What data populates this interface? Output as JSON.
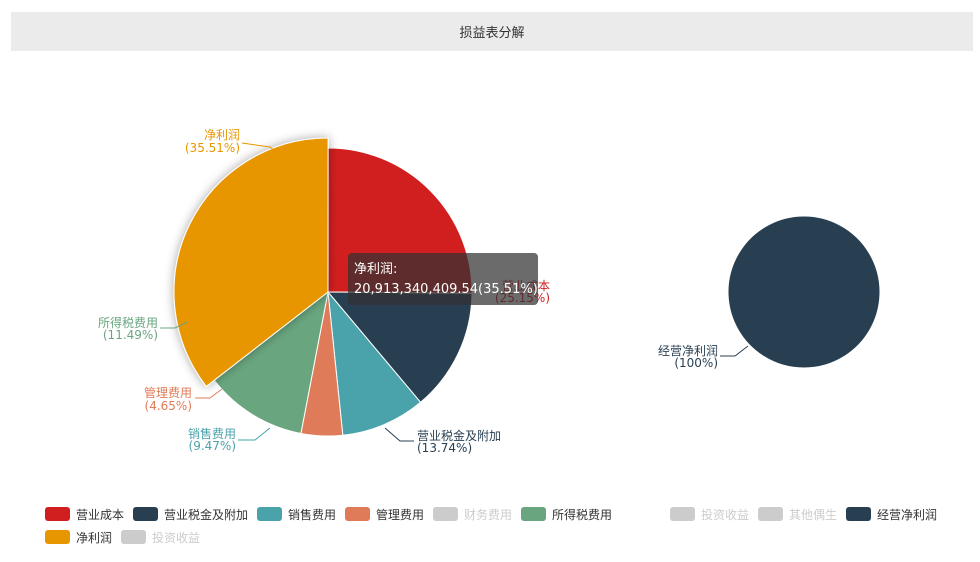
{
  "header": {
    "title": "损益表分解"
  },
  "chart_data": [
    {
      "type": "pie",
      "title": "",
      "slices": [
        {
          "name": "营业成本",
          "percent": 25.15,
          "color": "#d11f1f"
        },
        {
          "name": "营业税金及附加",
          "percent": 13.74,
          "color": "#283f52"
        },
        {
          "name": "销售费用",
          "percent": 9.47,
          "color": "#4aa3aa"
        },
        {
          "name": "管理费用",
          "percent": 4.65,
          "color": "#e07b59"
        },
        {
          "name": "所得税费用",
          "percent": 11.49,
          "color": "#69a67f"
        },
        {
          "name": "净利润",
          "percent": 35.51,
          "color": "#e89600",
          "highlighted": true
        }
      ]
    },
    {
      "type": "pie",
      "title": "",
      "slices": [
        {
          "name": "经营净利润",
          "percent": 100,
          "color": "#283f52"
        }
      ]
    }
  ],
  "slice_labels": {
    "cost": {
      "name": "营业成本",
      "pct": "(25.15%)"
    },
    "tax": {
      "name": "营业税金及附加",
      "pct": "(13.74%)"
    },
    "sales": {
      "name": "销售费用",
      "pct": "(9.47%)"
    },
    "admin": {
      "name": "管理费用",
      "pct": "(4.65%)"
    },
    "income_tax": {
      "name": "所得税费用",
      "pct": "(11.49%)"
    },
    "net_profit": {
      "name": "净利润",
      "pct": "(35.51%)"
    },
    "op_net_profit": {
      "name": "经营净利润",
      "pct": "(100%)"
    }
  },
  "tooltip": {
    "title": "净利润:",
    "value": "20,913,340,409.54(35.51%)"
  },
  "legend_left": [
    {
      "label": "营业成本",
      "color": "#d11f1f",
      "active": true
    },
    {
      "label": "营业税金及附加",
      "color": "#283f52",
      "active": true
    },
    {
      "label": "销售费用",
      "color": "#4aa3aa",
      "active": true
    },
    {
      "label": "管理费用",
      "color": "#e07b59",
      "active": true
    },
    {
      "label": "财务费用",
      "color": "#cccccc",
      "active": false
    },
    {
      "label": "所得税费用",
      "color": "#69a67f",
      "active": true
    },
    {
      "label": "净利润",
      "color": "#e89600",
      "active": true
    },
    {
      "label": "投资收益",
      "color": "#cccccc",
      "active": false
    }
  ],
  "legend_right": [
    {
      "label": "投资收益",
      "color": "#cccccc",
      "active": false
    },
    {
      "label": "其他偶生",
      "color": "#cccccc",
      "active": false
    },
    {
      "label": "经营净利润",
      "color": "#283f52",
      "active": true
    }
  ]
}
